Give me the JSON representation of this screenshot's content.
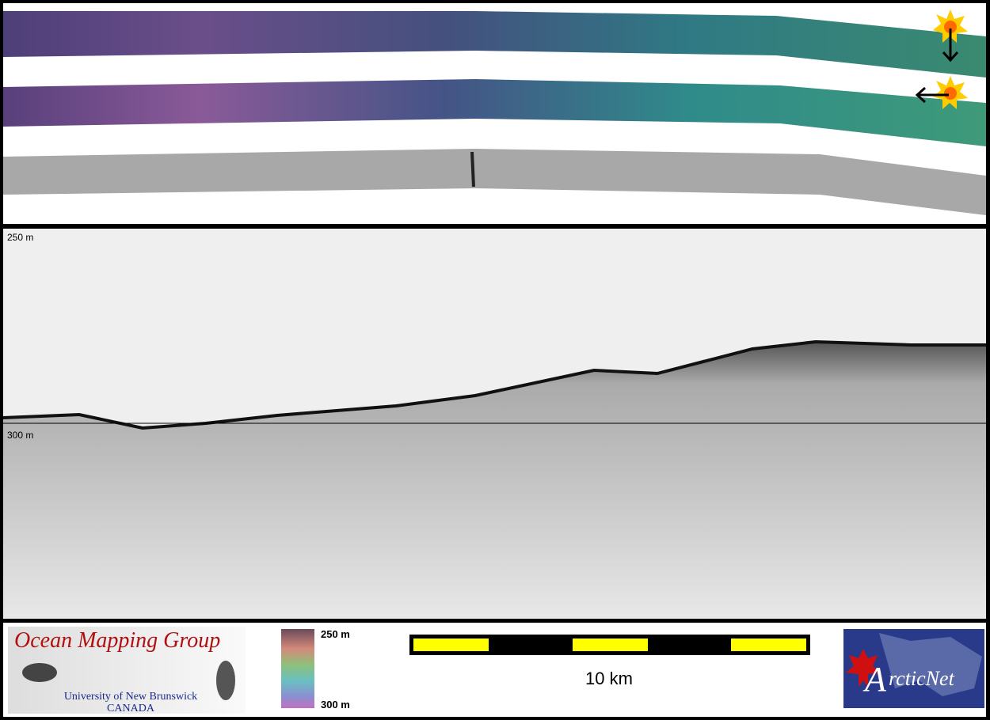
{
  "profile": {
    "top_label": "250 m",
    "depth_label": "300 m"
  },
  "footer": {
    "logo": {
      "title": "Ocean Mapping Group",
      "line1": "University of New Brunswick",
      "line2": "CANADA"
    },
    "colorbar": {
      "top_label": "250 m",
      "bottom_label": "300 m"
    },
    "scale_bar": {
      "label": "10 km"
    },
    "partner_logo": {
      "first_letter": "A",
      "rest": "rcticNet"
    }
  }
}
